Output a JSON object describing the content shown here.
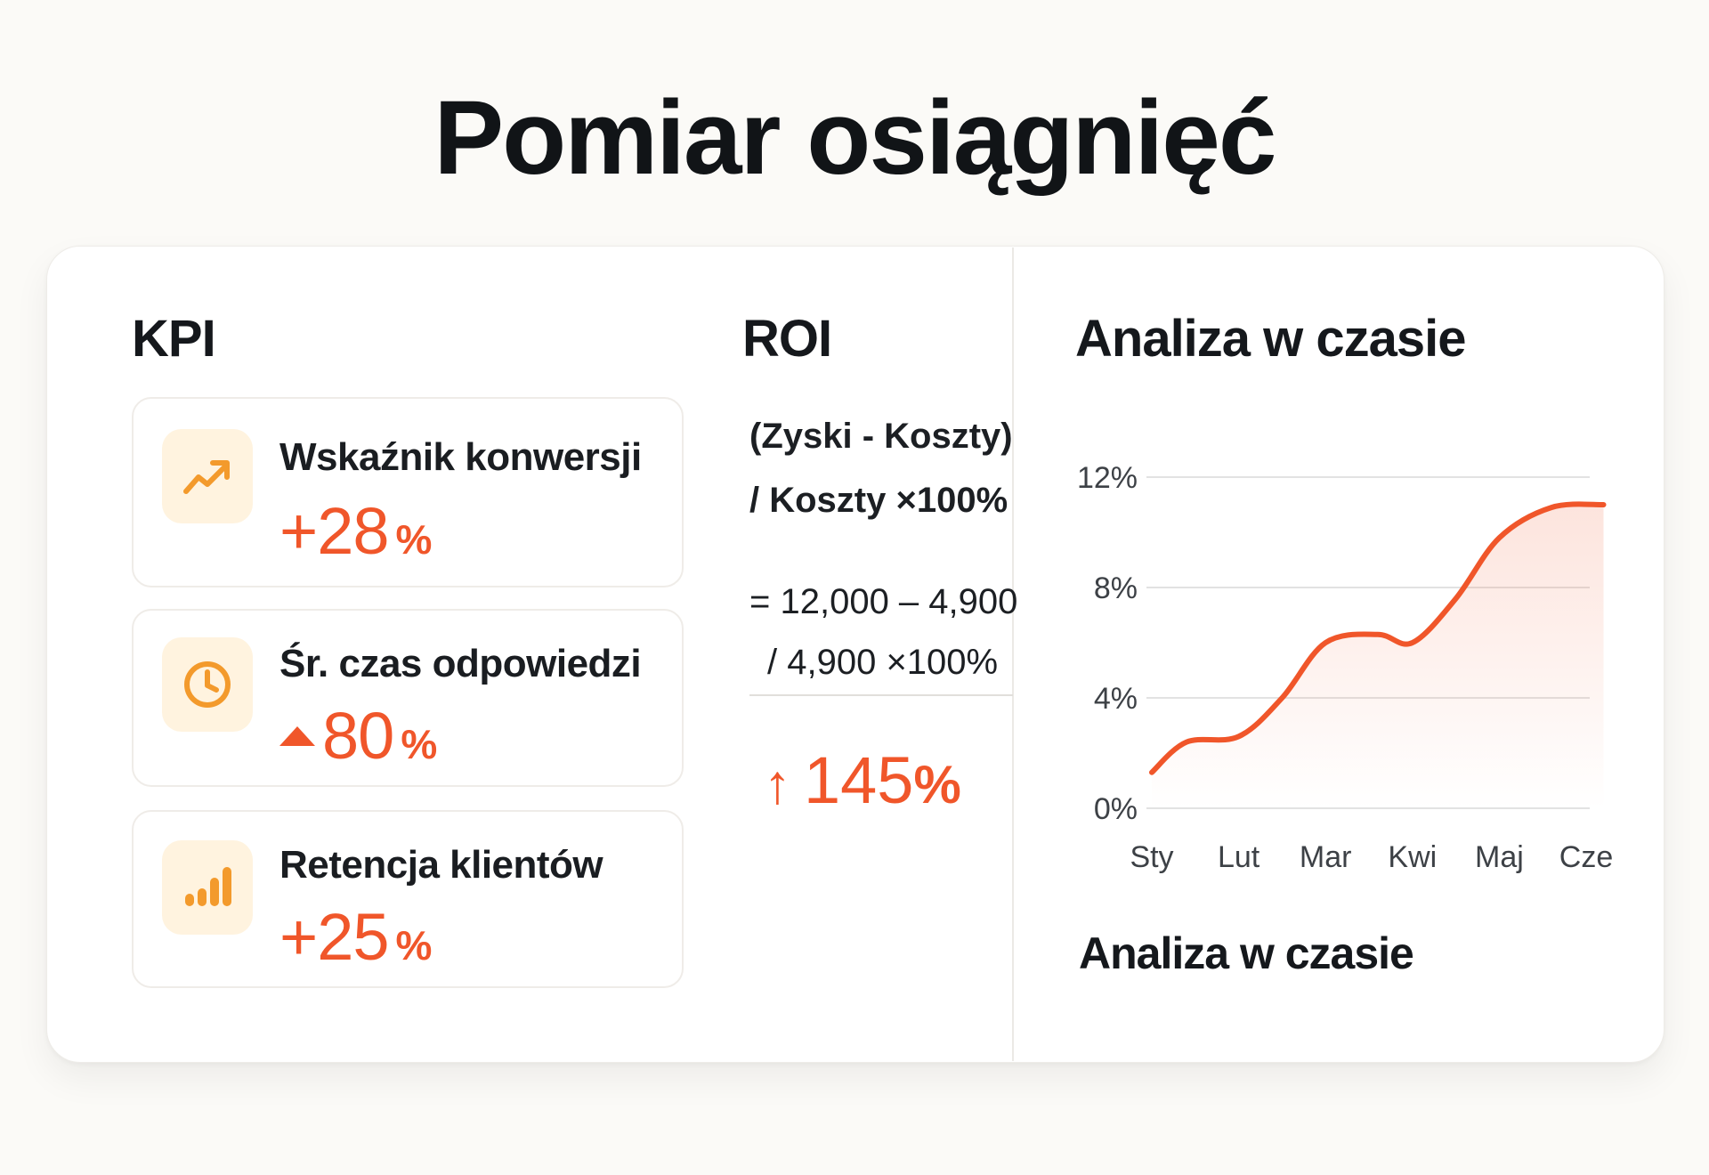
{
  "page": {
    "title": "Pomiar osiągnięć"
  },
  "kpi": {
    "heading": "KPI",
    "items": [
      {
        "name": "Wskaźnik konwersji",
        "prefix": "+",
        "value": "28",
        "unit": "%",
        "icon": "trend-up-arrow-icon"
      },
      {
        "name": "Śr. czas odpowiedzi",
        "prefix": "",
        "value": "80",
        "unit": "%",
        "icon": "clock-icon"
      },
      {
        "name": "Retencja klientów",
        "prefix": "+",
        "value": "25",
        "unit": "%",
        "icon": "bar-chart-icon"
      }
    ]
  },
  "roi": {
    "heading": "ROI",
    "formula_line1": "(Zyski - Koszty)",
    "formula_line2": "/ Koszty ×100%",
    "calc_line1": "= 12,000 – 4,900",
    "calc_line2": "/ 4,900 ×100%",
    "result_arrow": "↑",
    "result_value": "145",
    "result_unit": "%"
  },
  "analysis": {
    "heading": "Analiza w czasie",
    "caption": "Analiza w czasie"
  },
  "colors": {
    "accent": "#f0562a",
    "icon_bg": "#fff3df",
    "icon_fg": "#f39a2c"
  },
  "chart_data": {
    "type": "area",
    "title": "",
    "xlabel": "",
    "ylabel": "",
    "categories": [
      "Sty",
      "Lut",
      "Mar",
      "Kwi",
      "Maj",
      "Cze"
    ],
    "x": [
      0,
      0.4,
      1,
      1.5,
      2,
      2.6,
      3,
      3.5,
      4,
      4.6,
      5.2
    ],
    "series": [
      {
        "name": "",
        "values": [
          1.3,
          2.4,
          2.6,
          4.0,
          6.0,
          6.3,
          6.0,
          7.6,
          9.8,
          10.9,
          11.0
        ]
      }
    ],
    "yticks": [
      "0%",
      "4%",
      "8%",
      "12%"
    ],
    "ytick_values": [
      0,
      4,
      8,
      12
    ],
    "ylim": [
      0,
      12
    ],
    "grid": true,
    "legend": "none"
  }
}
